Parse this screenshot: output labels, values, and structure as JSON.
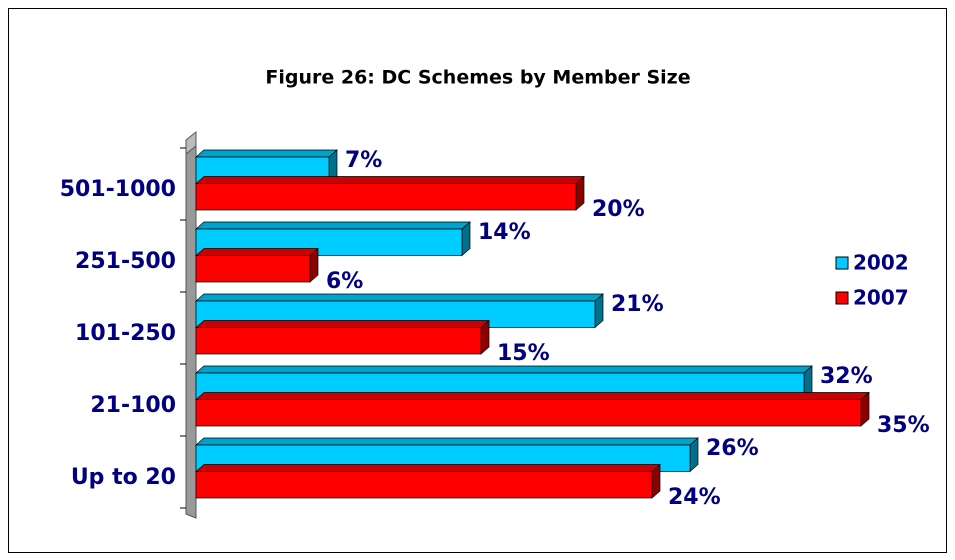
{
  "chart_data": {
    "type": "bar",
    "orientation": "horizontal",
    "title": "Figure 26: DC Schemes by Member Size",
    "categories": [
      "501-1000",
      "251-500",
      "101-250",
      "21-100",
      "Up to 20"
    ],
    "series": [
      {
        "name": "2002",
        "color": "#00ccff",
        "values": [
          7,
          14,
          21,
          32,
          26
        ],
        "value_labels": [
          "7%",
          "14%",
          "21%",
          "32%",
          "26%"
        ]
      },
      {
        "name": "2007",
        "color": "#ff0000",
        "values": [
          20,
          6,
          15,
          35,
          24
        ],
        "value_labels": [
          "20%",
          "6%",
          "15%",
          "35%",
          "24%"
        ]
      }
    ],
    "xlim": [
      0,
      40
    ],
    "legend": "right"
  }
}
